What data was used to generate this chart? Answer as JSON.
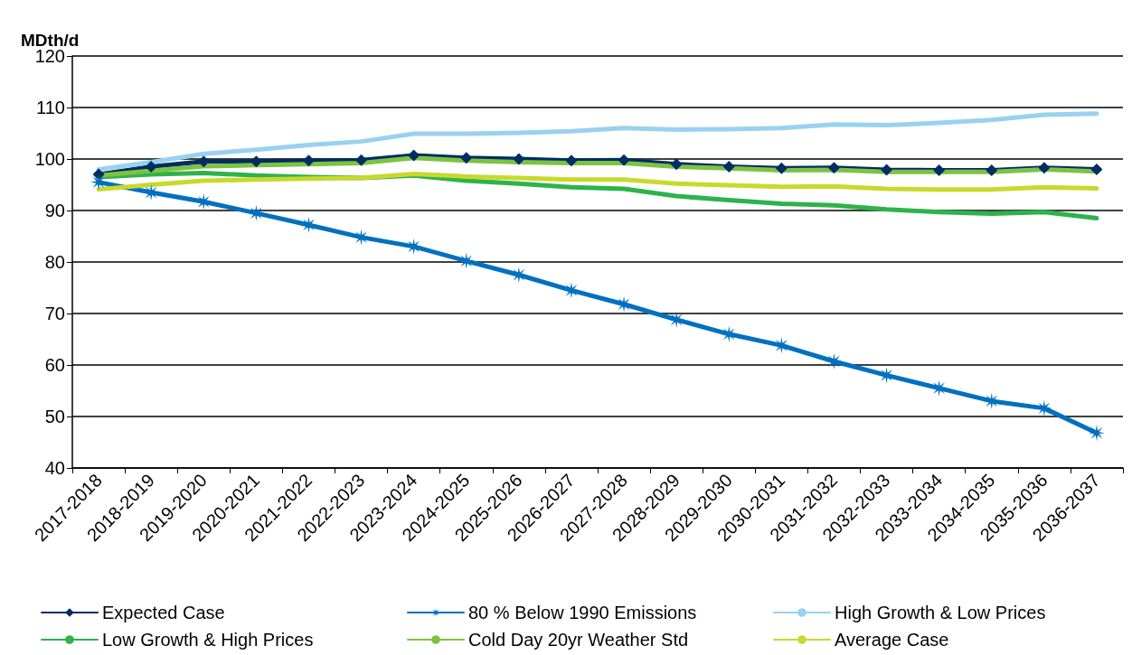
{
  "chart_data": {
    "type": "line",
    "ylabel": "MDth/d",
    "categories": [
      "2017-2018",
      "2018-2019",
      "2019-2020",
      "2020-2021",
      "2021-2022",
      "2022-2023",
      "2023-2024",
      "2024-2025",
      "2025-2026",
      "2026-2027",
      "2027-2028",
      "2028-2029",
      "2029-2030",
      "2030-2031",
      "2031-2032",
      "2032-2033",
      "2033-2034",
      "2034-2035",
      "2035-2036",
      "2036-2037"
    ],
    "series": [
      {
        "name": "Expected Case",
        "color": "#002d62",
        "marker": "diamond",
        "values": [
          97,
          98.5,
          99.5,
          99.5,
          99.7,
          99.8,
          100.7,
          100.2,
          100,
          99.7,
          99.8,
          99,
          98.5,
          98.2,
          98.3,
          97.9,
          97.8,
          97.8,
          98.3,
          98
        ]
      },
      {
        "name": "80 % Below 1990 Emissions",
        "color": "#0070c0",
        "marker": "star",
        "values": [
          95.5,
          93.5,
          91.7,
          89.5,
          87.2,
          84.8,
          83,
          80.2,
          77.5,
          74.5,
          71.8,
          68.8,
          66,
          63.8,
          60.7,
          58,
          55.5,
          53,
          51.6,
          46.8
        ]
      },
      {
        "name": "High Growth & Low Prices",
        "color": "#99d1f0",
        "values": [
          98,
          99.4,
          101,
          101.8,
          102.7,
          103.4,
          104.9,
          104.9,
          105.1,
          105.4,
          106,
          105.7,
          105.8,
          106,
          106.7,
          106.6,
          107,
          107.6,
          108.6,
          108.8
        ]
      },
      {
        "name": "Low Growth & High Prices",
        "color": "#2db34a",
        "values": [
          96.5,
          97,
          97.3,
          96.8,
          96.5,
          96.3,
          96.8,
          95.8,
          95.2,
          94.5,
          94.2,
          92.8,
          92,
          91.3,
          91,
          90.2,
          89.7,
          89.4,
          89.7,
          88.5
        ]
      },
      {
        "name": "Cold Day 20yr Weather Std",
        "color": "#7dc242",
        "values": [
          96.8,
          97.7,
          98.6,
          98.8,
          99,
          99.2,
          100.2,
          99.7,
          99.4,
          99.2,
          99.2,
          98.5,
          98.2,
          97.8,
          97.9,
          97.5,
          97.5,
          97.5,
          98,
          97.6
        ]
      },
      {
        "name": "Average Case",
        "color": "#c8d92e",
        "values": [
          94.1,
          95,
          95.8,
          96,
          96.2,
          96.3,
          97.1,
          96.6,
          96.3,
          96,
          96,
          95.2,
          94.9,
          94.6,
          94.7,
          94.2,
          94.1,
          94.1,
          94.5,
          94.3
        ]
      }
    ],
    "ylim": [
      40,
      120
    ],
    "yticks": [
      40,
      50,
      60,
      70,
      80,
      90,
      100,
      110,
      120
    ],
    "grid": "y",
    "legend": "bottom"
  }
}
